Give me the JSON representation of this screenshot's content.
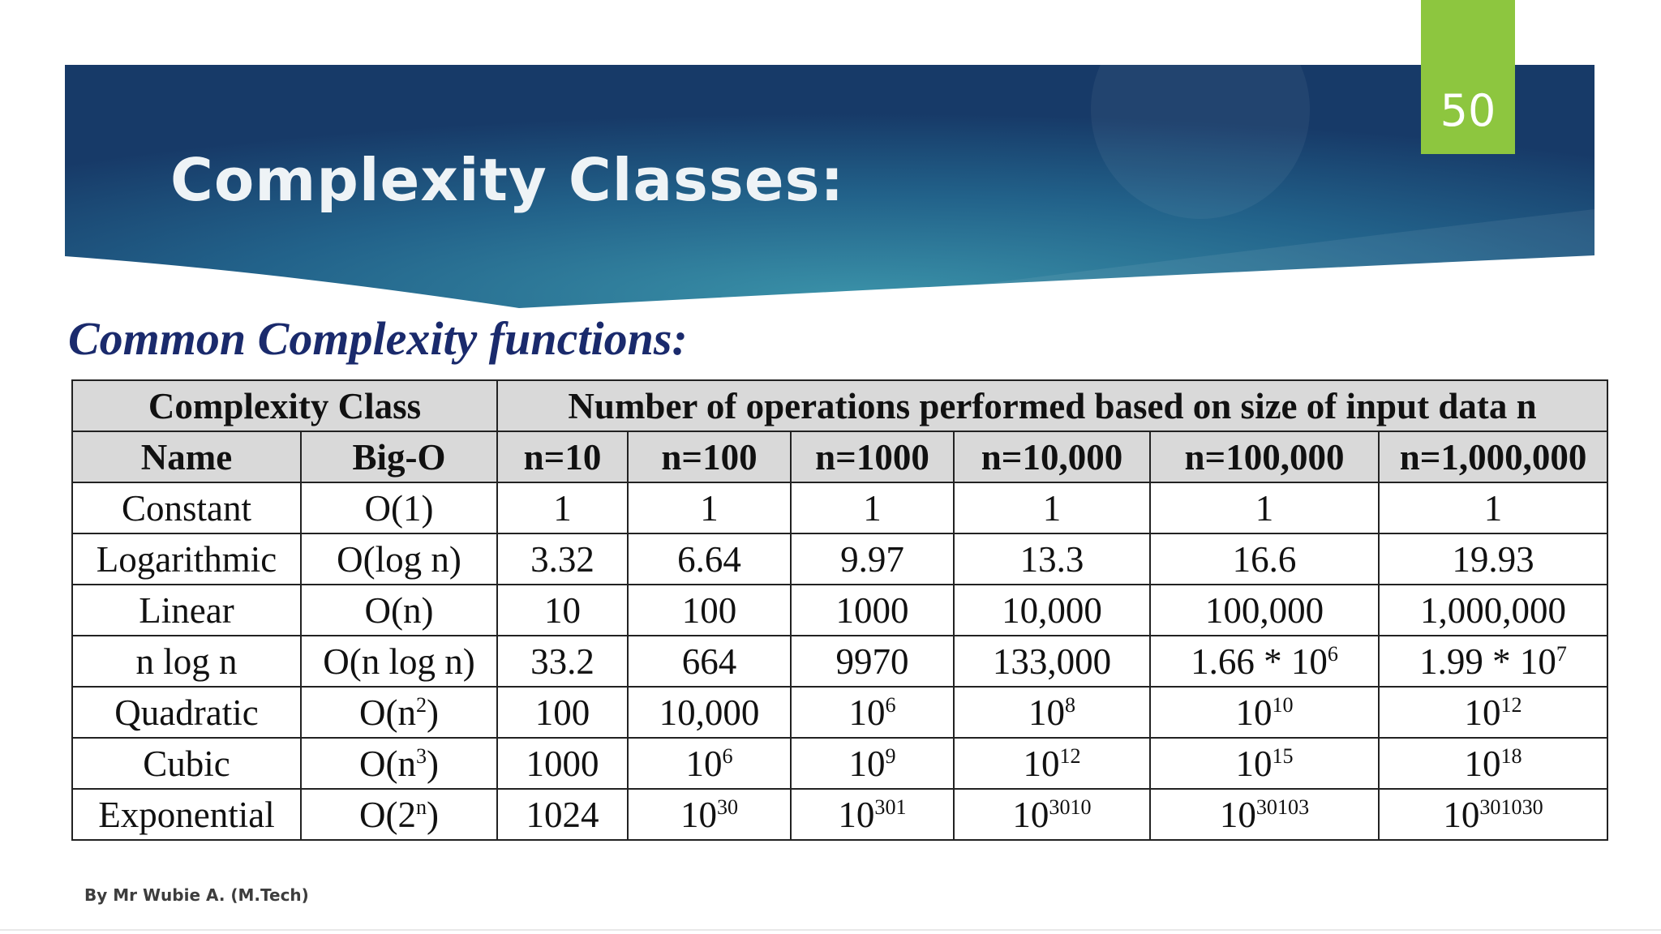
{
  "slide": {
    "title": "Complexity Classes:",
    "number": "50",
    "subtitle": "Common Complexity functions:",
    "footer": "By Mr Wubie A. (M.Tech)"
  },
  "table": {
    "group_headers": {
      "class": "Complexity Class",
      "ops": "Number of operations performed based on size of input data n"
    },
    "columns": [
      "Name",
      "Big-O",
      "n=10",
      "n=100",
      "n=1000",
      "n=10,000",
      "n=100,000",
      "n=1,000,000"
    ],
    "rows": [
      [
        {
          "t": "Constant"
        },
        {
          "t": "O(1)"
        },
        {
          "t": "1"
        },
        {
          "t": "1"
        },
        {
          "t": "1"
        },
        {
          "t": "1"
        },
        {
          "t": "1"
        },
        {
          "t": "1"
        }
      ],
      [
        {
          "t": "Logarithmic"
        },
        {
          "t": "O(log n)"
        },
        {
          "t": "3.32"
        },
        {
          "t": "6.64"
        },
        {
          "t": "9.97"
        },
        {
          "t": "13.3"
        },
        {
          "t": "16.6"
        },
        {
          "t": "19.93"
        }
      ],
      [
        {
          "t": "Linear"
        },
        {
          "t": "O(n)"
        },
        {
          "t": "10"
        },
        {
          "t": "100"
        },
        {
          "t": "1000"
        },
        {
          "t": "10,000"
        },
        {
          "t": "100,000"
        },
        {
          "t": "1,000,000"
        }
      ],
      [
        {
          "t": "n log n"
        },
        {
          "t": "O(n log n)"
        },
        {
          "t": "33.2"
        },
        {
          "t": "664"
        },
        {
          "t": "9970"
        },
        {
          "t": "133,000"
        },
        {
          "t": "1.66 * 10",
          "sup": "6"
        },
        {
          "t": "1.99 * 10",
          "sup": "7"
        }
      ],
      [
        {
          "t": "Quadratic"
        },
        {
          "t": "O(n",
          "sup": "2",
          "post": ")"
        },
        {
          "t": "100"
        },
        {
          "t": "10,000"
        },
        {
          "t": "10",
          "sup": "6"
        },
        {
          "t": "10",
          "sup": "8"
        },
        {
          "t": "10",
          "sup": "10"
        },
        {
          "t": "10",
          "sup": "12"
        }
      ],
      [
        {
          "t": "Cubic"
        },
        {
          "t": "O(n",
          "sup": "3",
          "post": ")"
        },
        {
          "t": "1000"
        },
        {
          "t": "10",
          "sup": "6"
        },
        {
          "t": "10",
          "sup": "9"
        },
        {
          "t": "10",
          "sup": "12"
        },
        {
          "t": "10",
          "sup": "15"
        },
        {
          "t": "10",
          "sup": "18"
        }
      ],
      [
        {
          "t": "Exponential"
        },
        {
          "t": "O(2",
          "sup": "n",
          "post": ")"
        },
        {
          "t": "1024"
        },
        {
          "t": "10",
          "sup": "30"
        },
        {
          "t": "10",
          "sup": "301"
        },
        {
          "t": "10",
          "sup": "3010"
        },
        {
          "t": "10",
          "sup": "30103"
        },
        {
          "t": "10",
          "sup": "301030"
        }
      ]
    ]
  },
  "colors": {
    "banner_dark": "#173a68",
    "banner_light": "#3a91a8",
    "badge": "#8dc63f",
    "subtitle": "#1a2a6c",
    "header_fill": "#d9d9d9"
  }
}
